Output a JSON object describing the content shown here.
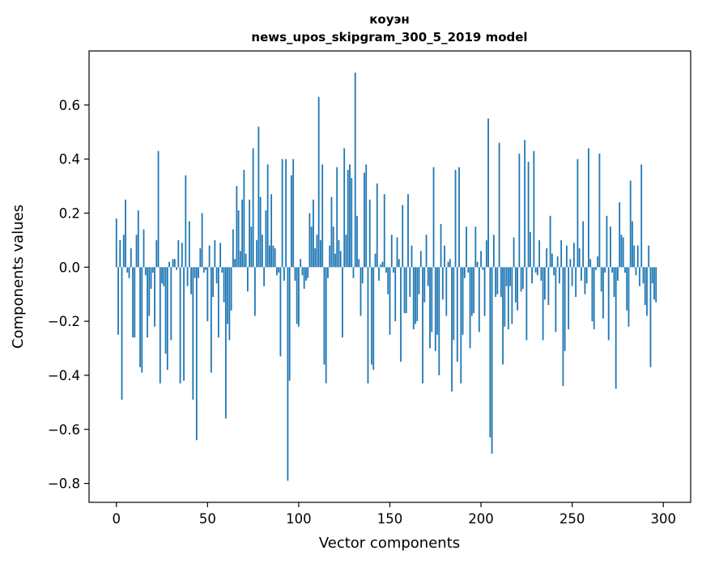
{
  "chart_data": {
    "type": "bar",
    "title_line1": "коуэн",
    "title_line2": "news_upos_skipgram_300_5_2019 model",
    "xlabel": "Vector components",
    "ylabel": "Components values",
    "xlim": [
      -15,
      315
    ],
    "ylim": [
      -0.87,
      0.8
    ],
    "xticks": [
      0,
      50,
      100,
      150,
      200,
      250,
      300
    ],
    "xtick_labels": [
      "0",
      "50",
      "100",
      "150",
      "200",
      "250",
      "300"
    ],
    "yticks": [
      -0.8,
      -0.6,
      -0.4,
      -0.2,
      0.0,
      0.2,
      0.4,
      0.6
    ],
    "ytick_labels": [
      "−0.8",
      "−0.6",
      "−0.4",
      "−0.2",
      "0.0",
      "0.2",
      "0.4",
      "0.6"
    ],
    "grid": false,
    "bar_color": "#1f77b4",
    "values": [
      0.18,
      -0.25,
      0.1,
      -0.49,
      0.12,
      0.25,
      -0.02,
      -0.04,
      0.07,
      -0.26,
      -0.26,
      0.12,
      0.21,
      -0.37,
      -0.39,
      0.14,
      -0.03,
      -0.26,
      -0.18,
      -0.08,
      -0.02,
      -0.22,
      0.1,
      0.43,
      -0.43,
      -0.06,
      -0.07,
      -0.32,
      -0.38,
      0.02,
      -0.27,
      0.03,
      0.03,
      -0.01,
      0.1,
      -0.43,
      0.09,
      -0.42,
      0.34,
      -0.07,
      0.17,
      -0.1,
      -0.49,
      -0.04,
      -0.64,
      -0.04,
      0.07,
      0.2,
      -0.02,
      -0.01,
      -0.2,
      0.08,
      -0.39,
      -0.11,
      0.1,
      -0.06,
      -0.26,
      0.09,
      -0.02,
      -0.13,
      -0.56,
      -0.21,
      -0.27,
      -0.16,
      0.14,
      0.03,
      0.3,
      0.21,
      0.06,
      0.25,
      0.36,
      0.05,
      -0.09,
      0.25,
      0.15,
      0.44,
      -0.18,
      0.1,
      0.52,
      0.26,
      0.12,
      -0.07,
      0.21,
      0.38,
      0.08,
      0.27,
      0.08,
      0.07,
      -0.03,
      -0.02,
      -0.33,
      0.4,
      -0.05,
      0.4,
      -0.79,
      -0.42,
      0.34,
      0.4,
      -0.05,
      -0.21,
      -0.22,
      0.03,
      -0.03,
      -0.08,
      -0.05,
      -0.04,
      0.2,
      0.15,
      0.25,
      0.07,
      0.12,
      0.63,
      0.1,
      0.38,
      -0.36,
      -0.43,
      -0.04,
      0.08,
      0.26,
      0.15,
      0.05,
      0.37,
      0.1,
      0.06,
      -0.26,
      0.44,
      0.12,
      0.36,
      0.38,
      0.33,
      -0.04,
      0.72,
      0.19,
      0.03,
      -0.18,
      -0.06,
      0.35,
      0.38,
      -0.43,
      0.25,
      -0.36,
      -0.38,
      0.05,
      0.31,
      -0.05,
      0.01,
      0.02,
      0.27,
      -0.02,
      -0.1,
      -0.25,
      0.12,
      -0.02,
      -0.2,
      0.11,
      0.03,
      -0.35,
      0.23,
      -0.17,
      -0.17,
      0.27,
      -0.11,
      0.08,
      -0.23,
      -0.21,
      -0.2,
      -0.1,
      0.06,
      -0.43,
      -0.13,
      0.12,
      -0.07,
      -0.3,
      -0.24,
      0.37,
      -0.31,
      -0.25,
      -0.4,
      0.16,
      -0.12,
      0.08,
      -0.18,
      0.02,
      0.03,
      -0.46,
      -0.27,
      0.36,
      -0.35,
      0.37,
      -0.43,
      -0.25,
      -0.04,
      0.15,
      -0.02,
      -0.3,
      -0.18,
      -0.17,
      0.15,
      0.02,
      -0.24,
      0.06,
      -0.01,
      -0.18,
      0.1,
      0.55,
      -0.63,
      -0.69,
      0.12,
      -0.11,
      -0.1,
      0.46,
      -0.11,
      -0.36,
      -0.22,
      -0.07,
      -0.23,
      -0.07,
      -0.21,
      0.11,
      -0.13,
      -0.16,
      0.42,
      -0.09,
      -0.08,
      0.47,
      -0.27,
      0.39,
      0.13,
      -0.06,
      0.43,
      -0.02,
      -0.03,
      0.1,
      -0.05,
      -0.27,
      -0.12,
      0.07,
      -0.14,
      0.19,
      0.05,
      -0.03,
      -0.24,
      0.04,
      -0.06,
      0.1,
      -0.44,
      -0.31,
      0.08,
      -0.23,
      0.03,
      -0.07,
      0.09,
      -0.11,
      0.4,
      0.07,
      -0.05,
      0.17,
      -0.1,
      -0.06,
      0.44,
      0.03,
      -0.2,
      -0.23,
      -0.01,
      0.04,
      0.42,
      -0.09,
      -0.19,
      -0.02,
      0.19,
      -0.27,
      0.15,
      -0.02,
      -0.11,
      -0.45,
      -0.05,
      0.24,
      0.12,
      0.11,
      -0.02,
      -0.16,
      -0.22,
      0.32,
      0.17,
      0.08,
      -0.03,
      0.08,
      -0.07,
      0.38,
      -0.06,
      -0.14,
      -0.18,
      0.08,
      -0.37,
      -0.06,
      -0.12,
      -0.13
    ]
  }
}
